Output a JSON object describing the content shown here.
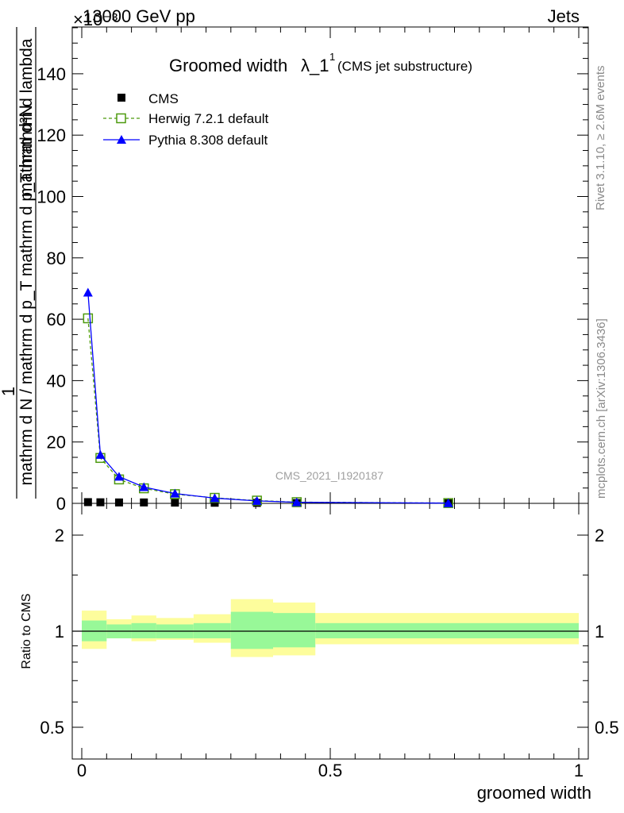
{
  "header": {
    "energy_label": "13000 GeV pp",
    "process_label": "Jets",
    "exponent_label": "×10⁻³"
  },
  "side_texts": {
    "rivet": "Rivet 3.1.10, ≥ 2.6M events",
    "mcplots": "mcplots.cern.ch [arXiv:1306.3436]"
  },
  "chart_data": [
    {
      "type": "line",
      "title": "Groomed width",
      "title_symbol": "λ_1",
      "title_superscript": "1",
      "subtitle": "(CMS jet substructure)",
      "analysis_label": "CMS_2021_I1920187",
      "ylabel_numerator": "mathrm d²N",
      "ylabel_denominator": "mathrm d N / mathrm d p_T mathrm d p_T mathrm d lambda",
      "ylabel_prefix": "1",
      "xlabel": "groomed width",
      "xlim": [
        0,
        1
      ],
      "ylim": [
        0,
        155
      ],
      "y_ticks": [
        0,
        20,
        40,
        60,
        80,
        100,
        120,
        140
      ],
      "x": [
        0.0125,
        0.0375,
        0.075,
        0.125,
        0.1875,
        0.2675,
        0.3525,
        0.4325,
        0.7375
      ],
      "series": [
        {
          "name": "CMS",
          "color": "#000000",
          "marker": "square",
          "values": [
            0.4,
            0.35,
            0.3,
            0.3,
            0.25,
            0.2,
            0.15,
            0.1,
            0.05
          ]
        },
        {
          "name": "Herwig 7.2.1 default",
          "color": "#4d9a0e",
          "marker": "open-square",
          "dashed": true,
          "values": [
            60.3,
            14.8,
            7.8,
            4.9,
            3.0,
            1.8,
            0.9,
            0.4,
            0.1
          ]
        },
        {
          "name": "Pythia 8.308 default",
          "color": "#0000ff",
          "marker": "triangle",
          "values": [
            68.7,
            15.8,
            8.7,
            5.3,
            3.2,
            1.7,
            0.8,
            0.35,
            0.08
          ]
        }
      ]
    },
    {
      "type": "area",
      "ylabel": "Ratio to CMS",
      "xlabel": "groomed width",
      "xlim": [
        0,
        1
      ],
      "ylim": [
        0.4,
        2.35
      ],
      "y_scale": "log",
      "y_ticks": [
        0.5,
        1,
        2
      ],
      "y_tick_labels": [
        "0.5",
        "1",
        "2"
      ],
      "x_ticks": [
        0,
        0.5,
        1
      ],
      "x_tick_labels": [
        "0",
        "0.5",
        "1"
      ],
      "bins": [
        0,
        0.05,
        0.1,
        0.15,
        0.225,
        0.3,
        0.385,
        0.47,
        1.0
      ],
      "band_stat_low": [
        0.93,
        0.95,
        0.95,
        0.95,
        0.95,
        0.88,
        0.89,
        0.95
      ],
      "band_stat_high": [
        1.08,
        1.05,
        1.06,
        1.05,
        1.06,
        1.15,
        1.14,
        1.06
      ],
      "band_total_low": [
        0.88,
        0.95,
        0.93,
        0.94,
        0.92,
        0.83,
        0.84,
        0.91
      ],
      "band_total_high": [
        1.16,
        1.09,
        1.12,
        1.1,
        1.13,
        1.26,
        1.23,
        1.14
      ],
      "colors": {
        "stat": "#98f898",
        "total": "#fdfd9c",
        "ref": "#000000"
      }
    }
  ]
}
